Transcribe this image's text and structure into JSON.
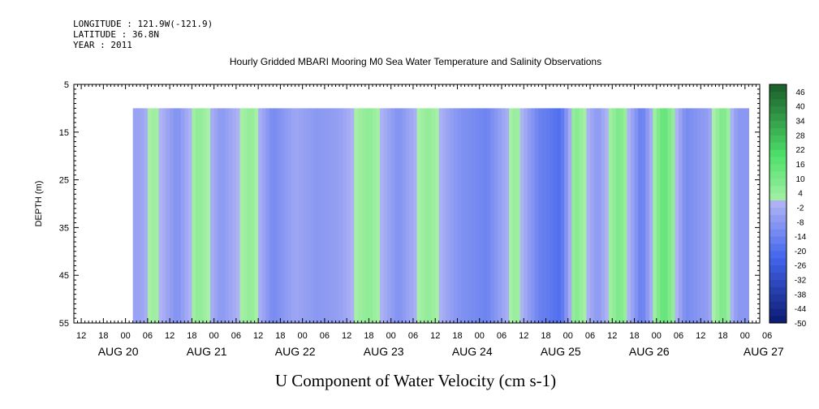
{
  "header": {
    "longitude": "LONGITUDE : 121.9W(-121.9)",
    "latitude": "LATITUDE : 36.8N",
    "year": "YEAR : 2011"
  },
  "chart_data": {
    "type": "heatmap",
    "title": "Hourly Gridded MBARI Mooring M0 Sea Water Temperature and Salinity Observations",
    "xlabel": "U Component of Water Velocity (cm s-1)",
    "ylabel": "DEPTH (m)",
    "y_ticks": [
      5,
      15,
      25,
      35,
      45,
      55
    ],
    "ylim": [
      55,
      5
    ],
    "data_depth_range": [
      10,
      55
    ],
    "x_hour_tick_labels": [
      "12",
      "18",
      "00",
      "06",
      "12",
      "18",
      "00",
      "06",
      "12",
      "18",
      "00",
      "06",
      "12",
      "18",
      "00",
      "06",
      "12",
      "18",
      "00",
      "06",
      "12",
      "18",
      "00",
      "06",
      "12",
      "18",
      "00",
      "06",
      "12",
      "18",
      "00",
      "06"
    ],
    "x_day_labels": [
      "AUG 20",
      "AUG 21",
      "AUG 22",
      "AUG 23",
      "AUG 24",
      "AUG 25",
      "AUG 26",
      "AUG 27"
    ],
    "x_range_hours": [
      -14,
      172
    ],
    "colorbar_labels": [
      "46",
      "40",
      "34",
      "28",
      "22",
      "16",
      "10",
      "4",
      "-2",
      "-8",
      "-14",
      "-20",
      "-26",
      "-32",
      "-38",
      "-44",
      "-50"
    ],
    "colorbar_levels": [
      -50,
      -47,
      -44,
      -41,
      -38,
      -35,
      -32,
      -29,
      -26,
      -23,
      -20,
      -17,
      -14,
      -11,
      -8,
      -5,
      -2,
      1,
      4,
      7,
      10,
      13,
      16,
      19,
      22,
      25,
      28,
      31,
      34,
      37,
      40,
      43,
      46,
      49
    ],
    "colors": {
      "positive_light": "#a8f0a8",
      "positive_mid": "#4ee06a",
      "positive_dark": "#1a5c2a",
      "negative_light": "#b0b4f4",
      "negative_mid": "#4466ee",
      "negative_dark": "#0a1a70"
    },
    "bands": [
      {
        "time_hours": 4,
        "u": -5
      },
      {
        "time_hours": 8,
        "u": 3
      },
      {
        "time_hours": 14,
        "u": -10
      },
      {
        "time_hours": 20,
        "u": 6
      },
      {
        "time_hours": 26,
        "u": -8
      },
      {
        "time_hours": 34,
        "u": 5
      },
      {
        "time_hours": 40,
        "u": -12
      },
      {
        "time_hours": 46,
        "u": -4
      },
      {
        "time_hours": 52,
        "u": -8
      },
      {
        "time_hours": 58,
        "u": -6
      },
      {
        "time_hours": 66,
        "u": 6
      },
      {
        "time_hours": 74,
        "u": -10
      },
      {
        "time_hours": 82,
        "u": 5
      },
      {
        "time_hours": 90,
        "u": -9
      },
      {
        "time_hours": 98,
        "u": -14
      },
      {
        "time_hours": 106,
        "u": 4
      },
      {
        "time_hours": 112,
        "u": -14
      },
      {
        "time_hours": 118,
        "u": -20
      },
      {
        "time_hours": 122,
        "u": 8
      },
      {
        "time_hours": 128,
        "u": -8
      },
      {
        "time_hours": 134,
        "u": 10
      },
      {
        "time_hours": 140,
        "u": -16
      },
      {
        "time_hours": 146,
        "u": 16
      },
      {
        "time_hours": 152,
        "u": -12
      },
      {
        "time_hours": 158,
        "u": -6
      },
      {
        "time_hours": 162,
        "u": 10
      },
      {
        "time_hours": 166,
        "u": -8
      }
    ]
  }
}
